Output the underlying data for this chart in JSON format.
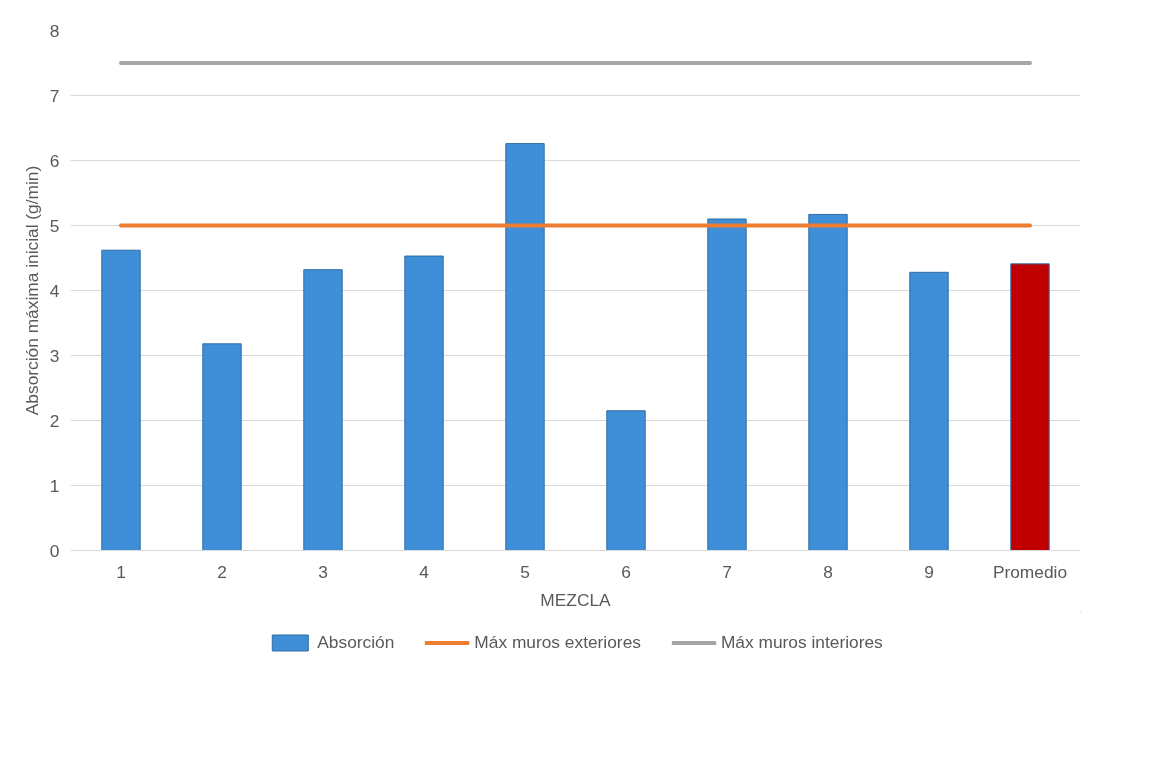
{
  "chart_data": {
    "type": "bar",
    "xlabel": "MEZCLA",
    "ylabel": "Absorción máxima inicial (g/min)",
    "categories": [
      "1",
      "2",
      "3",
      "4",
      "5",
      "6",
      "7",
      "8",
      "9",
      "Promedio"
    ],
    "series": [
      {
        "name": "Absorción",
        "color": "#3f8fd8",
        "colors": [
          "#3f8fd8",
          "#3f8fd8",
          "#3f8fd8",
          "#3f8fd8",
          "#3f8fd8",
          "#3f8fd8",
          "#3f8fd8",
          "#3f8fd8",
          "#3f8fd8",
          "#c00000"
        ],
        "values": [
          4.62,
          3.18,
          4.32,
          4.53,
          6.26,
          2.15,
          5.1,
          5.17,
          4.28,
          4.41
        ]
      },
      {
        "name": "Máx muros exteriores",
        "type": "line",
        "color": "#ed7d31",
        "values": [
          5,
          5,
          5,
          5,
          5,
          5,
          5,
          5,
          5,
          5
        ]
      },
      {
        "name": "Máx muros interiores",
        "type": "line",
        "color": "#a5a5a5",
        "values": [
          7.5,
          7.5,
          7.5,
          7.5,
          7.5,
          7.5,
          7.5,
          7.5,
          7.5,
          7.5
        ]
      }
    ],
    "ylim": [
      0,
      8
    ],
    "yticks": [
      0,
      1,
      2,
      3,
      4,
      5,
      6,
      7,
      8
    ],
    "grid": "y",
    "legend": "bottom",
    "marker": "none",
    "line_style": "solid"
  }
}
